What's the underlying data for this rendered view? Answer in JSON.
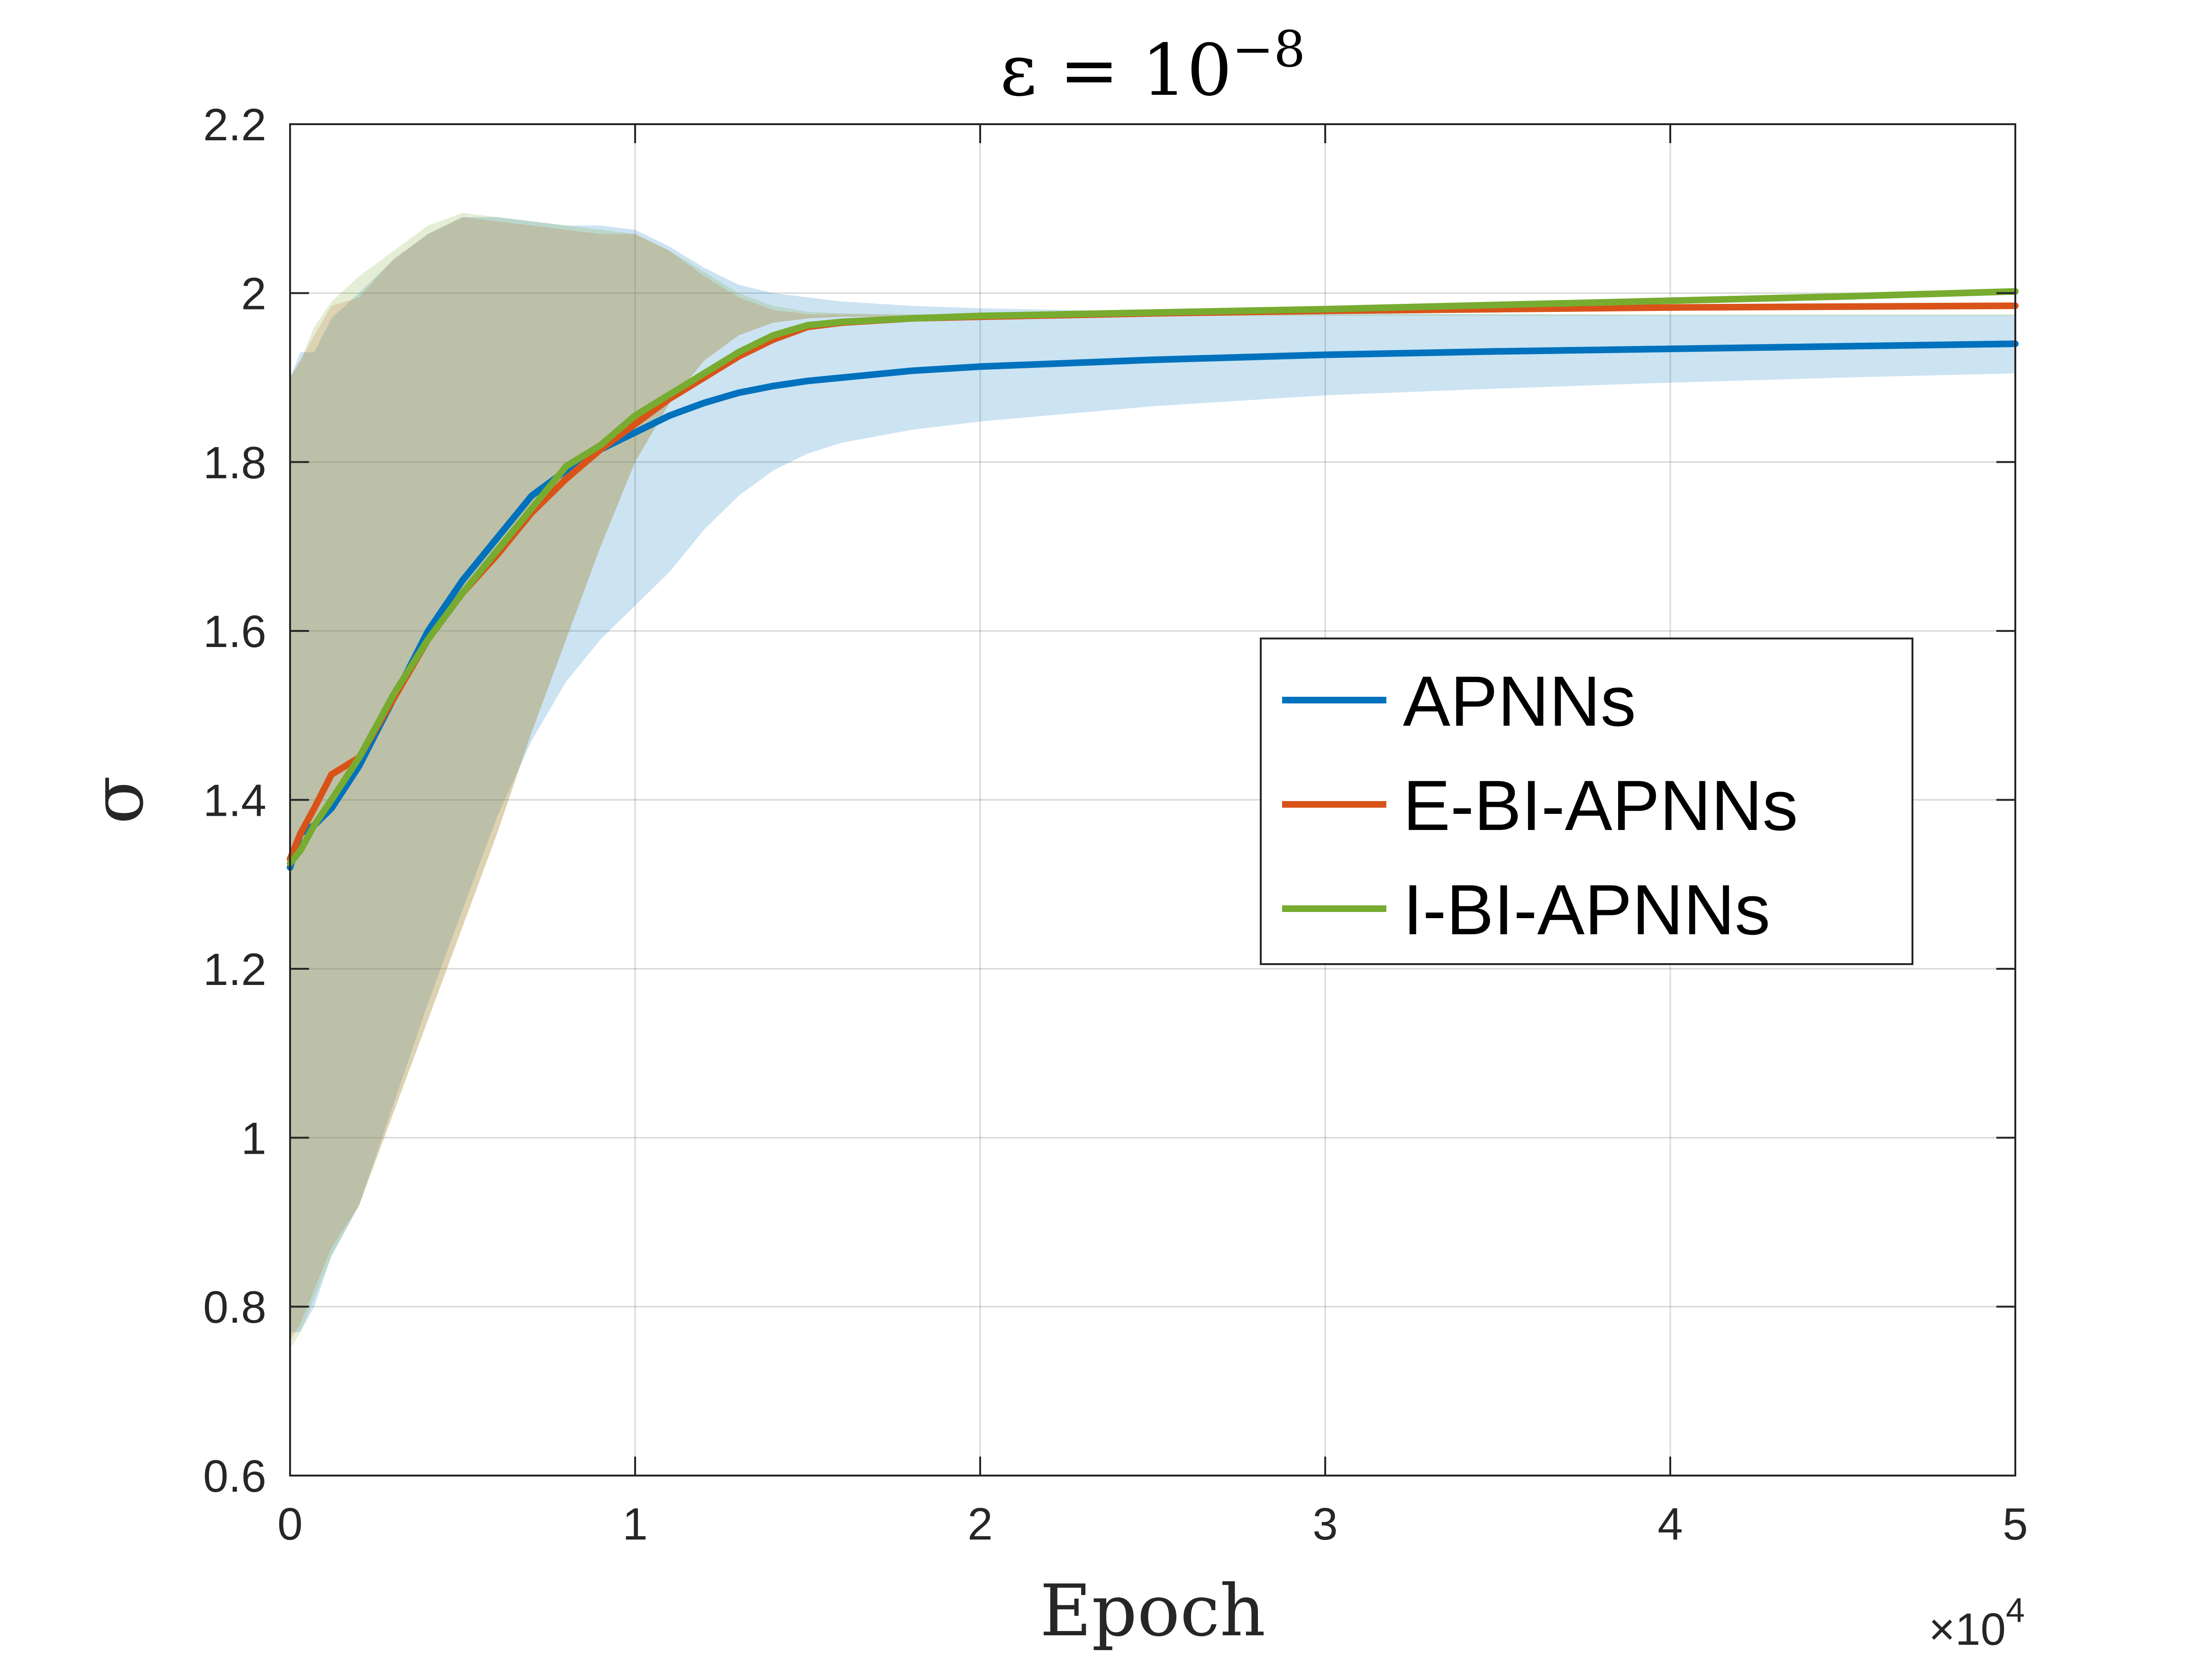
{
  "chart_data": {
    "type": "line",
    "title": "ε = 10",
    "title_exponent": "−8",
    "xlabel": "Epoch",
    "ylabel": "σ",
    "x_multiplier": "×10",
    "x_multiplier_exponent": "4",
    "xlim": [
      0,
      50000
    ],
    "ylim": [
      0.6,
      2.2
    ],
    "grid": true,
    "legend_position": "right-center",
    "x_ticks": [
      0,
      10000,
      20000,
      30000,
      40000,
      50000
    ],
    "x_tick_labels": [
      "0",
      "1",
      "2",
      "3",
      "4",
      "5"
    ],
    "y_ticks": [
      0.6,
      0.8,
      1.0,
      1.2,
      1.4,
      1.6,
      1.8,
      2.0,
      2.2
    ],
    "y_tick_labels": [
      "0.6",
      "0.8",
      "1",
      "1.2",
      "1.4",
      "1.6",
      "1.8",
      "2",
      "2.2"
    ],
    "series": [
      {
        "name": "APNNs",
        "color": "#0072BD",
        "x": [
          0,
          300,
          700,
          1200,
          2000,
          3000,
          4000,
          5000,
          6000,
          7000,
          8000,
          9000,
          10000,
          11000,
          12000,
          13000,
          14000,
          15000,
          16000,
          18000,
          20000,
          25000,
          30000,
          35000,
          40000,
          45000,
          50000
        ],
        "mean": [
          1.32,
          1.36,
          1.37,
          1.39,
          1.44,
          1.52,
          1.6,
          1.66,
          1.71,
          1.76,
          1.79,
          1.815,
          1.835,
          1.855,
          1.87,
          1.882,
          1.89,
          1.896,
          1.9,
          1.908,
          1.913,
          1.921,
          1.927,
          1.931,
          1.934,
          1.937,
          1.94
        ],
        "upper": [
          1.9,
          1.93,
          1.93,
          1.97,
          2.0,
          2.04,
          2.07,
          2.09,
          2.09,
          2.085,
          2.08,
          2.08,
          2.075,
          2.055,
          2.03,
          2.01,
          2.0,
          1.995,
          1.99,
          1.985,
          1.982,
          1.978,
          1.976,
          1.975,
          1.974,
          1.974,
          1.974
        ],
        "lower": [
          0.77,
          0.77,
          0.8,
          0.86,
          0.92,
          1.04,
          1.16,
          1.27,
          1.38,
          1.47,
          1.54,
          1.59,
          1.63,
          1.67,
          1.72,
          1.76,
          1.79,
          1.81,
          1.823,
          1.838,
          1.848,
          1.866,
          1.879,
          1.887,
          1.894,
          1.9,
          1.905
        ]
      },
      {
        "name": "E-BI-APNNs",
        "color": "#D95319",
        "x": [
          0,
          300,
          700,
          1200,
          2000,
          3000,
          4000,
          5000,
          6000,
          7000,
          8000,
          9000,
          10000,
          11000,
          12000,
          13000,
          14000,
          15000,
          16000,
          18000,
          20000,
          25000,
          30000,
          35000,
          40000,
          45000,
          50000
        ],
        "mean": [
          1.33,
          1.36,
          1.39,
          1.43,
          1.45,
          1.52,
          1.59,
          1.645,
          1.69,
          1.74,
          1.78,
          1.815,
          1.845,
          1.875,
          1.9,
          1.925,
          1.945,
          1.96,
          1.965,
          1.97,
          1.972,
          1.976,
          1.979,
          1.981,
          1.983,
          1.984,
          1.985
        ],
        "upper": [
          1.9,
          1.92,
          1.95,
          1.985,
          1.995,
          2.04,
          2.07,
          2.09,
          2.085,
          2.08,
          2.075,
          2.07,
          2.07,
          2.05,
          2.02,
          1.995,
          1.98,
          1.975,
          1.975,
          1.974,
          1.973,
          1.973,
          1.973,
          1.973,
          1.973,
          1.973,
          1.973
        ],
        "lower": [
          0.76,
          0.78,
          0.82,
          0.87,
          0.92,
          1.03,
          1.14,
          1.25,
          1.36,
          1.48,
          1.59,
          1.7,
          1.8,
          1.87,
          1.92,
          1.95,
          1.965,
          1.97,
          1.972,
          1.972,
          1.973,
          1.973,
          1.973,
          1.973,
          1.973,
          1.973,
          1.973
        ]
      },
      {
        "name": "I-BI-APNNs",
        "color": "#77AC30",
        "x": [
          0,
          300,
          700,
          1200,
          2000,
          3000,
          4000,
          5000,
          6000,
          7000,
          8000,
          9000,
          10000,
          11000,
          12000,
          13000,
          14000,
          15000,
          16000,
          18000,
          20000,
          25000,
          30000,
          35000,
          40000,
          45000,
          50000
        ],
        "mean": [
          1.325,
          1.34,
          1.37,
          1.4,
          1.45,
          1.525,
          1.59,
          1.645,
          1.695,
          1.745,
          1.795,
          1.82,
          1.855,
          1.88,
          1.905,
          1.93,
          1.95,
          1.962,
          1.966,
          1.97,
          1.973,
          1.977,
          1.981,
          1.986,
          1.991,
          1.996,
          2.002
        ],
        "upper": [
          1.9,
          1.92,
          1.96,
          1.99,
          2.02,
          2.05,
          2.08,
          2.095,
          2.09,
          2.085,
          2.08,
          2.075,
          2.07,
          2.05,
          2.025,
          2.0,
          1.985,
          1.978,
          1.976,
          1.975,
          1.975,
          1.975,
          1.975,
          1.975,
          1.975,
          1.975,
          1.975
        ],
        "lower": [
          0.75,
          0.77,
          0.81,
          0.86,
          0.92,
          1.03,
          1.14,
          1.25,
          1.36,
          1.48,
          1.59,
          1.7,
          1.8,
          1.87,
          1.92,
          1.95,
          1.965,
          1.97,
          1.972,
          1.972,
          1.973,
          1.973,
          1.973,
          1.973,
          1.973,
          1.973,
          1.973
        ]
      }
    ]
  }
}
